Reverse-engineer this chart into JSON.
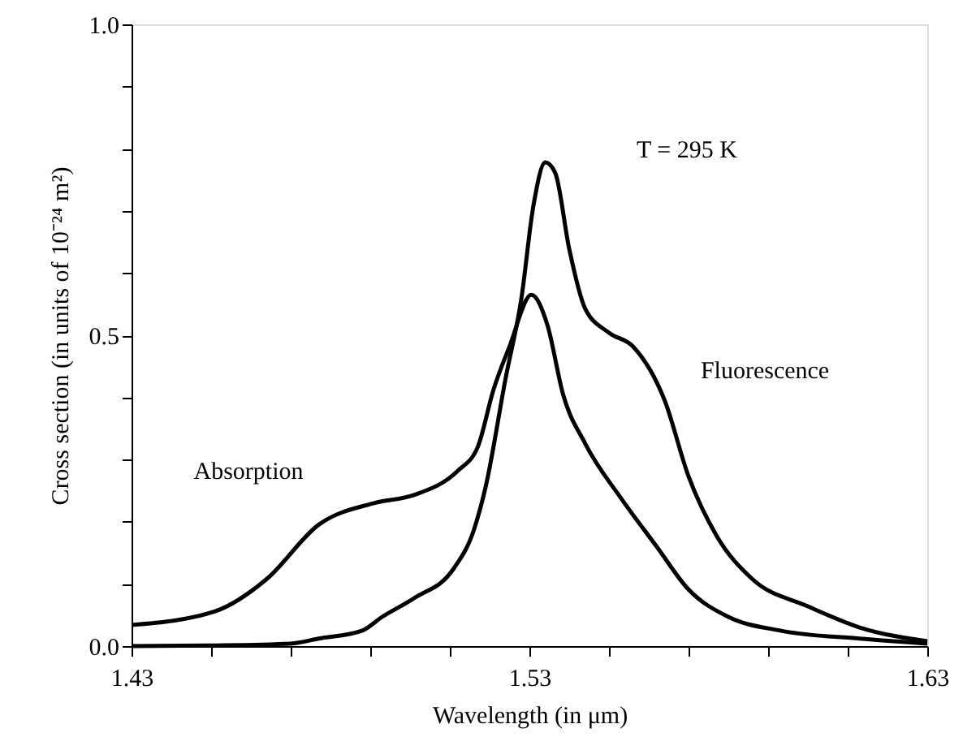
{
  "chart_data": {
    "type": "line",
    "xlabel": "Wavelength (in μm)",
    "ylabel": "Cross section (in units of 10⁻²⁴ m²)",
    "annotations": [
      "T = 295 K"
    ],
    "xlim": [
      1.43,
      1.63
    ],
    "ylim": [
      0,
      1
    ],
    "xticks": [
      1.43,
      {
        "value": 1.45,
        "label": null
      },
      {
        "value": 1.47,
        "label": null
      },
      {
        "value": 1.49,
        "label": null
      },
      {
        "value": 1.51,
        "label": null
      },
      1.53,
      {
        "value": 1.55,
        "label": null
      },
      {
        "value": 1.57,
        "label": null
      },
      {
        "value": 1.59,
        "label": null
      },
      {
        "value": 1.61,
        "label": null
      },
      1.63
    ],
    "yticks": [
      {
        "value": 0,
        "label": "0.0"
      },
      {
        "value": 0.1,
        "label": null
      },
      {
        "value": 0.2,
        "label": null
      },
      {
        "value": 0.3,
        "label": null
      },
      {
        "value": 0.4,
        "label": null
      },
      {
        "value": 0.5,
        "label": "0.5"
      },
      {
        "value": 0.6,
        "label": null
      },
      {
        "value": 0.7,
        "label": null
      },
      {
        "value": 0.8,
        "label": null
      },
      {
        "value": 0.9,
        "label": null
      },
      {
        "value": 1,
        "label": "1.0"
      }
    ],
    "grid": false,
    "legend": false,
    "marker": "none",
    "line_style": "solid",
    "series": [
      {
        "name": "Absorption",
        "color": "#000000",
        "x": [
          1.43,
          1.451,
          1.464,
          1.477,
          1.491,
          1.501,
          1.512,
          1.517,
          1.521,
          1.525,
          1.5305,
          1.5345,
          1.5385,
          1.544,
          1.553,
          1.562,
          1.57,
          1.58,
          1.593,
          1.613,
          1.63
        ],
        "values": [
          0.034,
          0.056,
          0.108,
          0.195,
          0.23,
          0.243,
          0.282,
          0.32,
          0.413,
          0.482,
          0.565,
          0.517,
          0.404,
          0.326,
          0.238,
          0.16,
          0.091,
          0.047,
          0.025,
          0.012,
          0.004
        ]
      },
      {
        "name": "Fluorescence",
        "color": "#000000",
        "x": [
          1.43,
          1.45,
          1.47,
          1.477,
          1.488,
          1.493,
          1.501,
          1.511,
          1.516,
          1.519,
          1.524,
          1.528,
          1.531,
          1.534,
          1.5365,
          1.54,
          1.544,
          1.55,
          1.556,
          1.564,
          1.57,
          1.577,
          1.586,
          1.6,
          1.613,
          1.63
        ],
        "values": [
          0.0,
          0.001,
          0.004,
          0.012,
          0.025,
          0.047,
          0.077,
          0.125,
          0.186,
          0.256,
          0.43,
          0.56,
          0.708,
          0.778,
          0.761,
          0.639,
          0.543,
          0.504,
          0.482,
          0.395,
          0.273,
          0.178,
          0.108,
          0.064,
          0.03,
          0.008
        ]
      }
    ]
  }
}
